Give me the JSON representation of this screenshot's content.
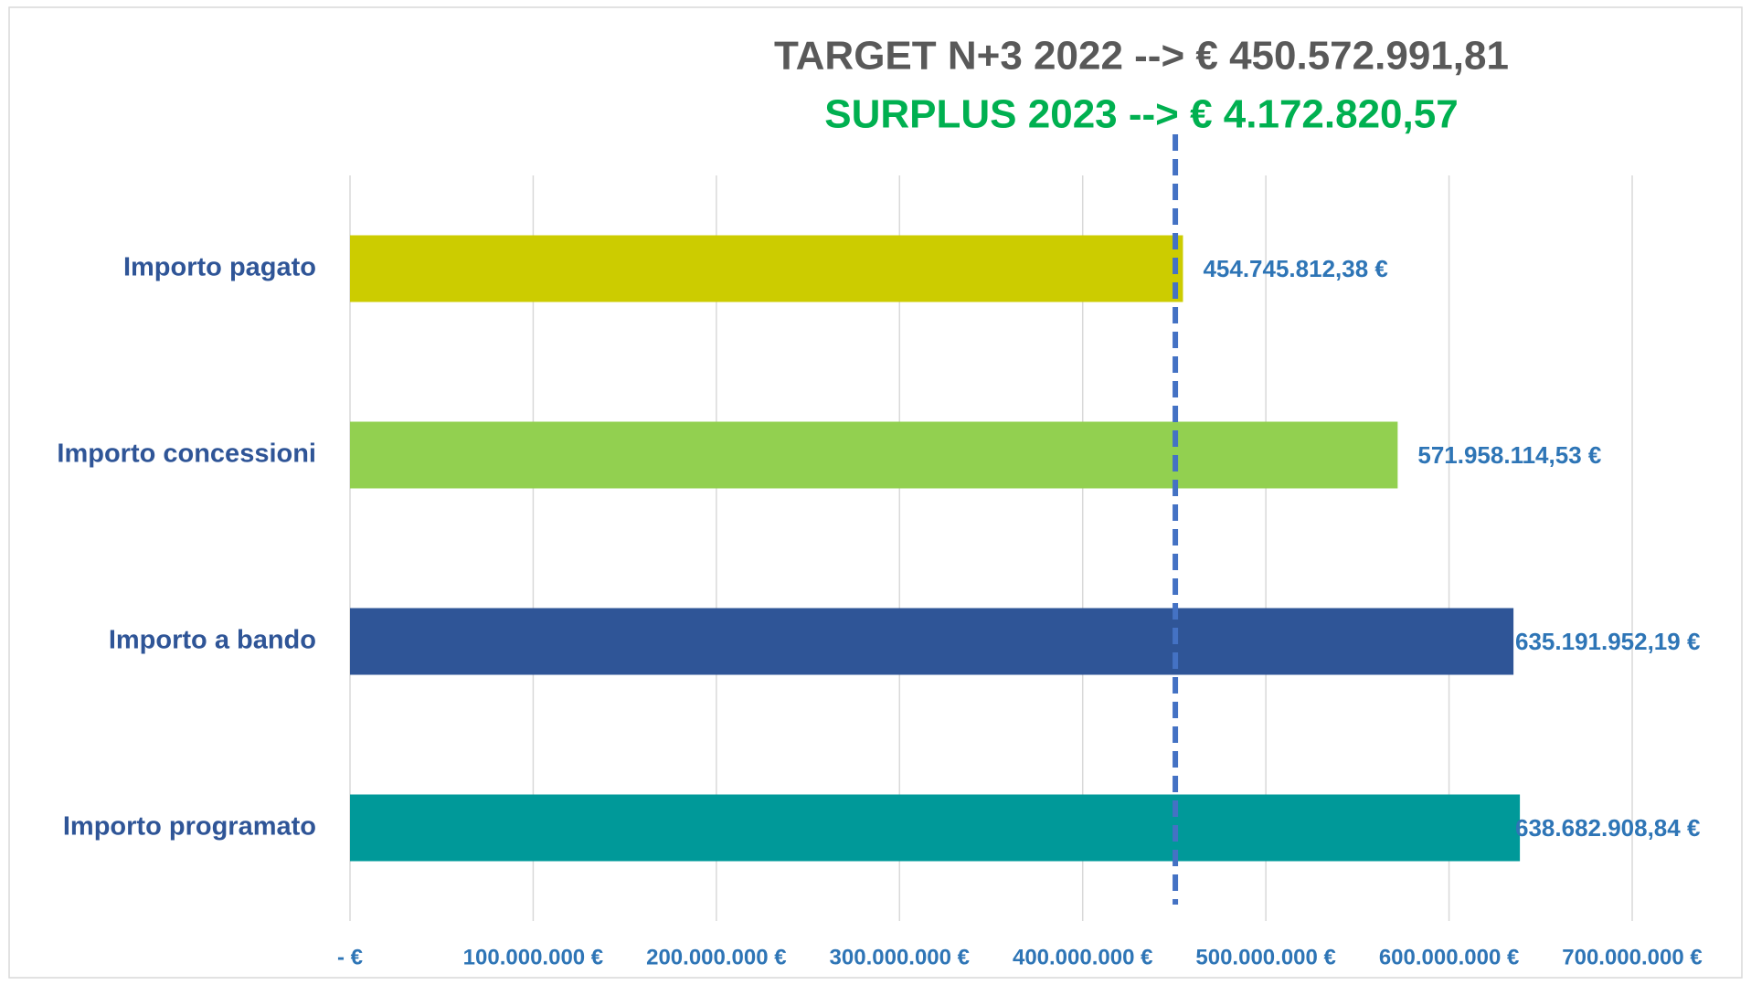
{
  "chart_data": {
    "type": "hbar",
    "title": "TARGET N+3 2022 --> € 450.572.991,81",
    "subtitle": "SURPLUS 2023 --> € 4.172.820,57",
    "categories": [
      "Importo pagato",
      "Importo concessioni",
      "Importo a bando",
      "Importo programato"
    ],
    "values": [
      454745812.38,
      571958114.53,
      635191952.19,
      638682908.84
    ],
    "value_labels": [
      "454.745.812,38 €",
      "571.958.114,53 €",
      "635.191.952,19 €",
      "638.682.908,84 €"
    ],
    "colors": [
      "#cccc00",
      "#92d050",
      "#2f5597",
      "#009999"
    ],
    "xlim": [
      0,
      700000000
    ],
    "xticks": [
      {
        "value": 0,
        "label": "- €"
      },
      {
        "value": 100000000,
        "label": "100.000.000 €"
      },
      {
        "value": 200000000,
        "label": "200.000.000 €"
      },
      {
        "value": 300000000,
        "label": "300.000.000 €"
      },
      {
        "value": 400000000,
        "label": "400.000.000 €"
      },
      {
        "value": 500000000,
        "label": "500.000.000 €"
      },
      {
        "value": 600000000,
        "label": "600.000.000 €"
      },
      {
        "value": 700000000,
        "label": "700.000.000 €"
      }
    ],
    "reference_line": 450572991.81,
    "grid": true
  }
}
